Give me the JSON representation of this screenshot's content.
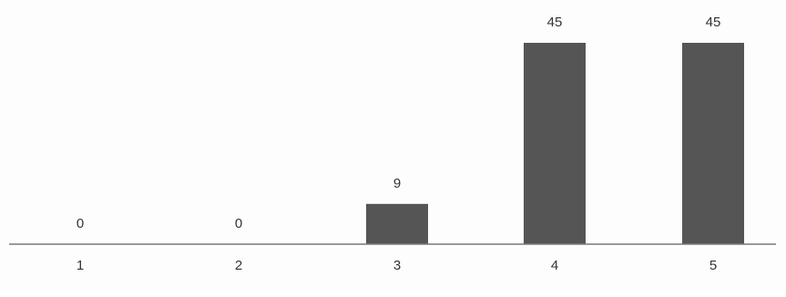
{
  "chart_data": {
    "type": "bar",
    "title": "",
    "categories": [
      "1",
      "2",
      "3",
      "4",
      "5"
    ],
    "values": [
      0,
      0,
      9,
      45,
      45
    ],
    "data_labels": [
      "0",
      "0",
      "9",
      "45",
      "45"
    ],
    "xlabel": "",
    "ylabel": "",
    "ylim": [
      0,
      45
    ],
    "grid": false,
    "legend": "none",
    "colors": {
      "bar": "#555555",
      "axis": "#7a7a7a",
      "text": "#333333",
      "background": "#fdfdfd"
    }
  }
}
